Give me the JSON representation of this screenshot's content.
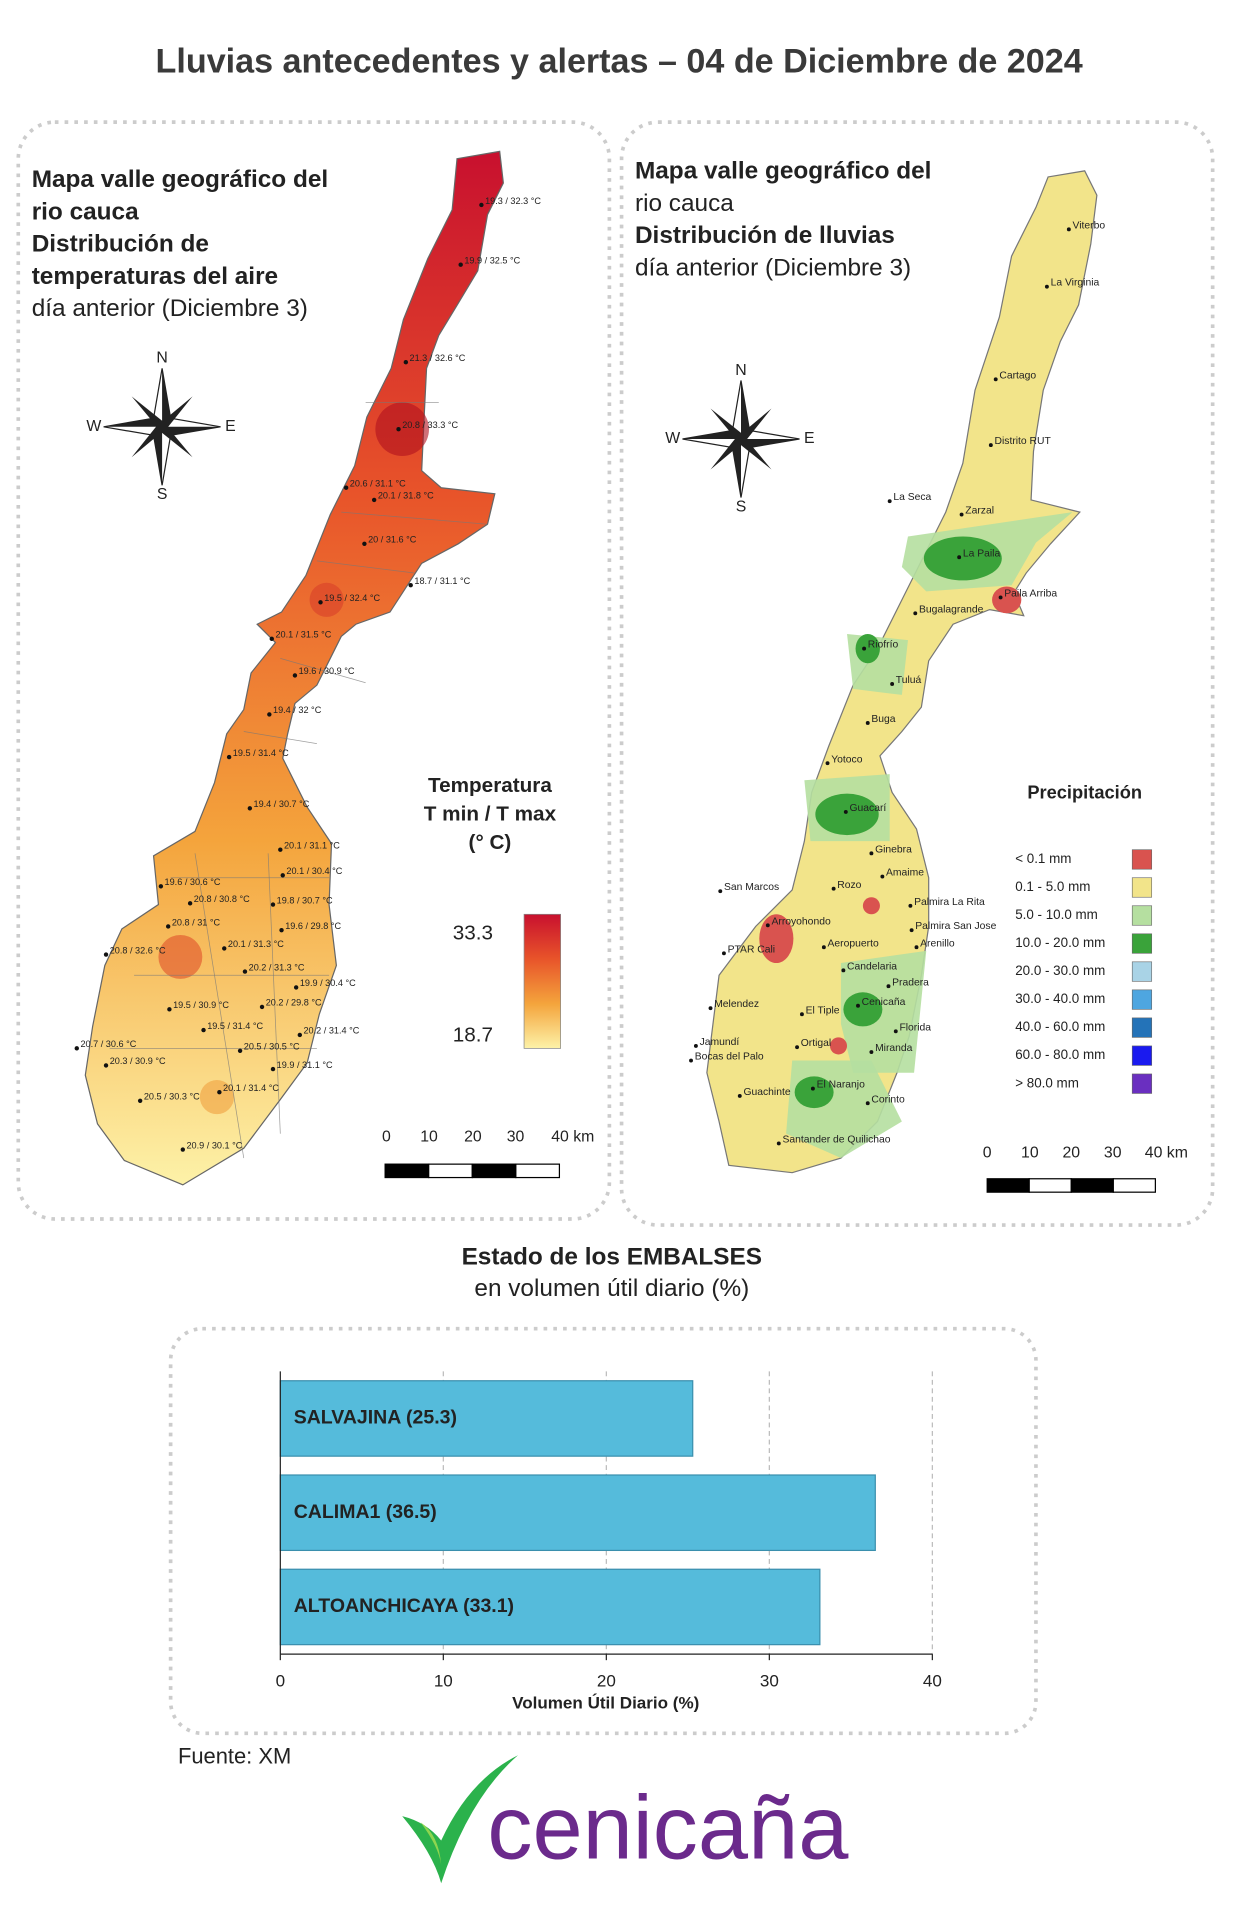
{
  "title": "Lluvias antecedentes y alertas – 04 de Diciembre de 2024",
  "temperature_map": {
    "title_lines": [
      "Mapa valle geográfico del",
      "rio cauca",
      "Distribución de",
      "temperaturas del aire",
      "día anterior (Diciembre 3)"
    ],
    "compass": [
      "N",
      "W",
      "E",
      "S"
    ],
    "stations": [
      "19.3 / 32.3 °C",
      "19.9 / 32.5 °C",
      "21.3 / 32.6 °C",
      "20.8 / 33.3 °C",
      "20.6 / 31.1 °C",
      "20.1 / 31.8 °C",
      "20 / 31.6 °C",
      "18.7 / 31.1 °C",
      "19.5 / 32.4 °C",
      "20.1 / 31.5 °C",
      "19.6 / 30.9 °C",
      "19.4 / 32 °C",
      "19.5 / 31.4 °C",
      "19.4 / 30.7 °C",
      "20.1 / 31.1 °C",
      "20.1 / 30.4 °C",
      "19.6 / 30.6 °C",
      "20.8 / 30.8 °C",
      "19.8 / 30.7 °C",
      "20.8 / 31 °C",
      "19.6 / 29.8 °C",
      "20.1 / 31.3 °C",
      "20.8 / 32.6 °C",
      "20.2 / 31.3 °C",
      "19.9 / 30.4 °C",
      "20.2 / 29.8 °C",
      "19.5 / 30.9 °C",
      "19.5 / 31.4 °C",
      "20.2 / 31.4 °C",
      "20.7 / 30.6 °C",
      "20.5 / 30.5 °C",
      "20.3 / 30.9 °C",
      "19.9 / 31.1 °C",
      "20.1 / 31.4 °C",
      "20.5 / 30.3 °C",
      "20.9 / 30.1 °C"
    ],
    "legend": {
      "title_lines": [
        "Temperatura",
        "T min / T max",
        "(° C)"
      ],
      "max": 33.3,
      "min": 18.7,
      "colors": [
        "#c8102e",
        "#e8542a",
        "#f4a43c",
        "#fdf2a8"
      ]
    },
    "scale": [
      "0",
      "10",
      "20",
      "30",
      "40 km"
    ]
  },
  "rain_map": {
    "title_lines": [
      "Mapa valle geográfico del",
      "rio cauca",
      "Distribución de lluvias",
      "día anterior (Diciembre 3)"
    ],
    "compass": [
      "N",
      "W",
      "E",
      "S"
    ],
    "stations": [
      "Viterbo",
      "La Virginia",
      "Cartago",
      "Distrito RUT",
      "La Seca",
      "Zarzal",
      "La Paila",
      "Paila Arriba",
      "Bugalagrande",
      "Riofrío",
      "Tuluá",
      "Buga",
      "Yotoco",
      "Guacarí",
      "Ginebra",
      "Amaime",
      "San Marcos",
      "Rozo",
      "Palmira La Rita",
      "Arroyohondo",
      "Palmira San Jose",
      "Aeropuerto",
      "Arenillo",
      "PTAR Cali",
      "Candelaria",
      "Pradera",
      "Melendez",
      "Cenicaña",
      "El Tiple",
      "Florida",
      "Jamundí",
      "Ortigal",
      "Miranda",
      "Bocas del Palo",
      "Guachinte",
      "El Naranjo",
      "Corinto",
      "Santander de Quilichao"
    ],
    "legend": {
      "title": "Precipitación",
      "entries": [
        {
          "label": "< 0.1 mm",
          "color": "#d9534f"
        },
        {
          "label": "0.1 - 5.0 mm",
          "color": "#f2e48a"
        },
        {
          "label": "5.0 - 10.0 mm",
          "color": "#b5dfa0"
        },
        {
          "label": "10.0 - 20.0 mm",
          "color": "#3aa33a"
        },
        {
          "label": "20.0 - 30.0 mm",
          "color": "#a9d3e6"
        },
        {
          "label": "30.0 - 40.0 mm",
          "color": "#4ea6e0"
        },
        {
          "label": "40.0 - 60.0 mm",
          "color": "#2473b8"
        },
        {
          "label": "60.0 - 80.0 mm",
          "color": "#1a1aef"
        },
        {
          "label": "> 80.0 mm",
          "color": "#6a2fc0"
        }
      ]
    },
    "scale": [
      "0",
      "10",
      "20",
      "30",
      "40 km"
    ]
  },
  "chart_data": {
    "type": "bar",
    "orientation": "horizontal",
    "title": "Estado de los EMBALSES",
    "subtitle": "en volumen útil diario (%)",
    "categories": [
      "SALVAJINA",
      "CALIMA1",
      "ALTOANCHICAYA"
    ],
    "values": [
      25.3,
      36.5,
      33.1
    ],
    "value_labels": [
      "SALVAJINA (25.3)",
      "CALIMA1 (36.5)",
      "ALTOANCHICAYA (33.1)"
    ],
    "color": "#55bbdb",
    "xlim": [
      0,
      40
    ],
    "xticks": [
      0,
      10,
      20,
      30,
      40
    ],
    "xlabel": "Volumen Útil Diario (%)",
    "grid": true
  },
  "source": "Fuente: XM",
  "logo": "cenicaña"
}
